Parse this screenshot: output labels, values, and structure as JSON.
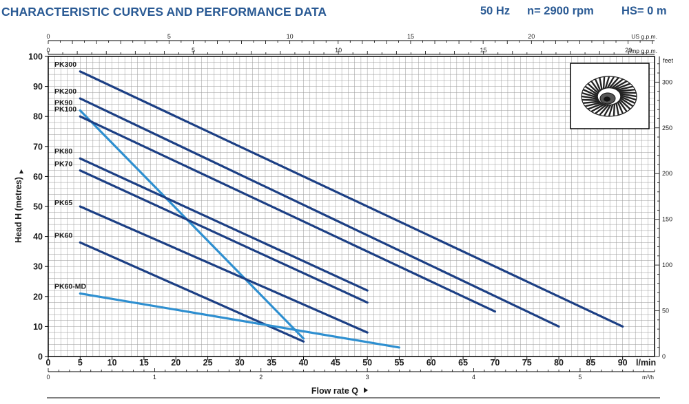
{
  "header": {
    "title": "CHARACTERISTIC CURVES AND PERFORMANCE DATA",
    "frequency": "50 Hz",
    "speed": "n= 2900 rpm",
    "suction_head": "HS= 0 m"
  },
  "colors": {
    "dark_curve": "#1c3f84",
    "light_curve": "#2e8fd0",
    "grid": "#9a9a9a",
    "header_text": "#2a5a94"
  },
  "icon": "impeller-image",
  "chart_data": {
    "type": "line",
    "xlabel": "Flow rate Q",
    "ylabel": "Head H (metres)",
    "x_unit_primary": "l/min",
    "x_unit_m3h": "m³/h",
    "x_unit_us": "US g.p.m.",
    "x_unit_imp": "Imp g.p.m.",
    "y_unit_right": "feet",
    "xlim": [
      0,
      95
    ],
    "ylim": [
      0,
      100
    ],
    "x_ticks_lmin": [
      0,
      5,
      10,
      15,
      20,
      25,
      30,
      35,
      40,
      45,
      50,
      55,
      60,
      65,
      70,
      75,
      80,
      85,
      90
    ],
    "y_ticks_m": [
      0,
      10,
      20,
      30,
      40,
      50,
      60,
      70,
      80,
      90,
      100
    ],
    "x_ticks_m3h": [
      0,
      1,
      2,
      3,
      4,
      5
    ],
    "x_ticks_us": [
      0,
      5,
      10,
      15,
      20
    ],
    "x_ticks_imp": [
      0,
      5,
      10,
      15,
      20
    ],
    "y_ticks_feet": [
      0,
      50,
      100,
      150,
      200,
      250,
      300
    ],
    "grid": true,
    "series": [
      {
        "name": "PK300",
        "color": "dark",
        "x": [
          5,
          90
        ],
        "y": [
          95,
          10
        ]
      },
      {
        "name": "PK200",
        "color": "dark",
        "x": [
          5,
          80
        ],
        "y": [
          86,
          10
        ]
      },
      {
        "name": "PK90",
        "color": "light",
        "x": [
          5,
          40
        ],
        "y": [
          82,
          6
        ]
      },
      {
        "name": "PK100",
        "color": "dark",
        "x": [
          5,
          70
        ],
        "y": [
          80,
          15
        ]
      },
      {
        "name": "PK80",
        "color": "dark",
        "x": [
          5,
          50
        ],
        "y": [
          66,
          22
        ]
      },
      {
        "name": "PK70",
        "color": "dark",
        "x": [
          5,
          50
        ],
        "y": [
          62,
          18
        ]
      },
      {
        "name": "PK65",
        "color": "dark",
        "x": [
          5,
          50
        ],
        "y": [
          50,
          8
        ]
      },
      {
        "name": "PK60",
        "color": "dark",
        "x": [
          5,
          40
        ],
        "y": [
          38,
          5
        ]
      },
      {
        "name": "PK60-MD",
        "color": "light",
        "x": [
          5,
          55
        ],
        "y": [
          21,
          3
        ]
      }
    ]
  }
}
